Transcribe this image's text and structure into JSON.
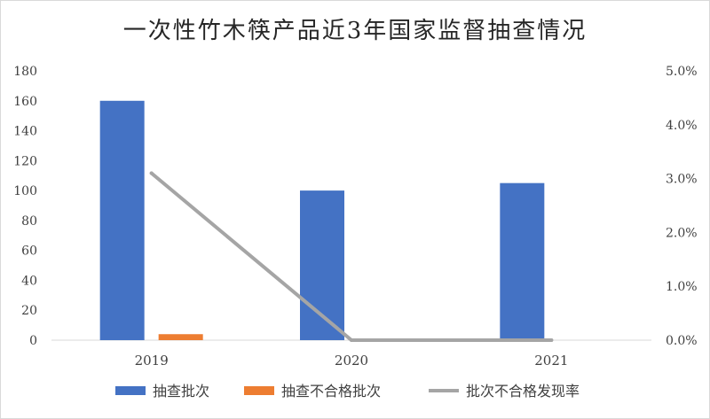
{
  "chart_data": {
    "type": "bar",
    "title": "一次性竹木筷产品近3年国家监督抽查情况",
    "categories": [
      "2019",
      "2020",
      "2021"
    ],
    "series": [
      {
        "name": "抽查批次",
        "kind": "bar",
        "axis": "left",
        "color": "#4472c4",
        "values": [
          160,
          100,
          105
        ]
      },
      {
        "name": "抽查不合格批次",
        "kind": "bar",
        "axis": "left",
        "color": "#ed7d31",
        "values": [
          4,
          0,
          0
        ]
      },
      {
        "name": "批次不合格发现率",
        "kind": "line",
        "axis": "right",
        "color": "#a5a5a5",
        "values": [
          3.1,
          0.0,
          0.0
        ]
      }
    ],
    "y_left": {
      "min": 0,
      "max": 180,
      "ticks": [
        "0",
        "20",
        "40",
        "60",
        "80",
        "100",
        "120",
        "140",
        "160",
        "180"
      ]
    },
    "y_right": {
      "min": 0,
      "max": 5,
      "ticks": [
        "0.0%",
        "1.0%",
        "2.0%",
        "3.0%",
        "4.0%",
        "5.0%"
      ]
    },
    "grid": false,
    "legend_position": "bottom"
  }
}
